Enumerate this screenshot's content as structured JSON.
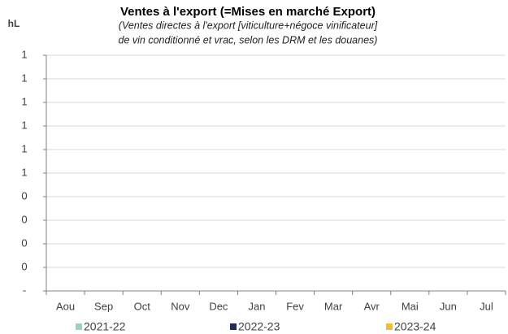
{
  "chart_data": {
    "type": "line",
    "title": "Ventes à l'export (=Mises en marché Export)",
    "subtitle": [
      "(Ventes directes à l'export [viticulture+négoce vinificateur]",
      "de vin conditionné et vrac, selon les DRM et les douanes)"
    ],
    "ylabel": "hL",
    "categories": [
      "Aou",
      "Sep",
      "Oct",
      "Nov",
      "Dec",
      "Jan",
      "Fev",
      "Mar",
      "Avr",
      "Mai",
      "Jun",
      "Jul"
    ],
    "series": [
      {
        "name": "2021-22",
        "color": "#9fd0c7",
        "values": [
          null,
          null,
          null,
          null,
          null,
          null,
          null,
          null,
          null,
          null,
          null,
          null
        ]
      },
      {
        "name": "2022-23",
        "color": "#1f2a5e",
        "values": [
          null,
          null,
          null,
          null,
          null,
          null,
          null,
          null,
          null,
          null,
          null,
          null
        ]
      },
      {
        "name": "2023-24",
        "color": "#f0bf3a",
        "values": [
          null,
          null,
          null,
          null,
          null,
          null,
          null,
          null,
          null,
          null,
          null,
          null
        ]
      }
    ],
    "ylim": [
      0,
      1
    ],
    "yticks": [
      {
        "value": 0,
        "label": "-"
      },
      {
        "value": 0.1,
        "label": "0"
      },
      {
        "value": 0.2,
        "label": "0"
      },
      {
        "value": 0.3,
        "label": "0"
      },
      {
        "value": 0.4,
        "label": "0"
      },
      {
        "value": 0.5,
        "label": "1"
      },
      {
        "value": 0.6,
        "label": "1"
      },
      {
        "value": 0.7,
        "label": "1"
      },
      {
        "value": 0.8,
        "label": "1"
      },
      {
        "value": 0.9,
        "label": "1"
      },
      1
    ],
    "grid": true,
    "legend": "bottom"
  }
}
